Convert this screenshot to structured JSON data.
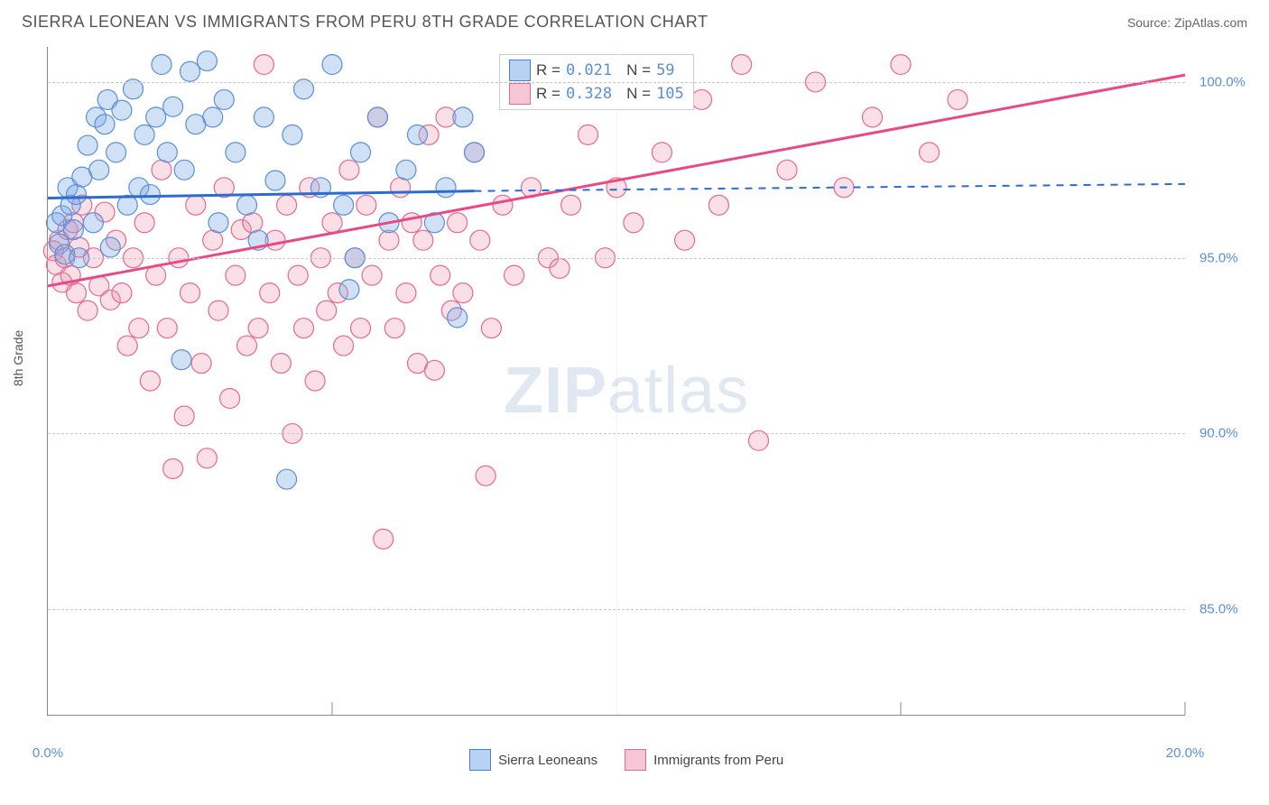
{
  "header": {
    "title": "SIERRA LEONEAN VS IMMIGRANTS FROM PERU 8TH GRADE CORRELATION CHART",
    "source": "Source: ZipAtlas.com"
  },
  "axes": {
    "ylabel": "8th Grade",
    "xlim": [
      0,
      20
    ],
    "ylim": [
      82,
      101
    ],
    "xticks": [
      0,
      10,
      20
    ],
    "xtick_labels": [
      "0.0%",
      "",
      "20.0%"
    ],
    "xtick_minor": [
      5,
      15
    ],
    "yticks": [
      85,
      90,
      95,
      100
    ],
    "ytick_labels": [
      "85.0%",
      "90.0%",
      "95.0%",
      "100.0%"
    ],
    "grid_color": "#c7c7c7"
  },
  "watermark": {
    "part1": "ZIP",
    "part2": "atlas"
  },
  "stats_legend": {
    "series": [
      {
        "swatch_fill": "#b7d2f2",
        "swatch_border": "#4b7fc4",
        "r_label": "R =",
        "r_value": "0.021",
        "n_label": "N =",
        "n_value": " 59"
      },
      {
        "swatch_fill": "#f7c7d3",
        "swatch_border": "#e36b8f",
        "r_label": "R =",
        "r_value": "0.328",
        "n_label": "N =",
        "n_value": "105"
      }
    ]
  },
  "bottom_legend": {
    "items": [
      {
        "swatch_fill": "#b7d2f2",
        "swatch_border": "#4b7fc4",
        "label": "Sierra Leoneans"
      },
      {
        "swatch_fill": "#f7c7d3",
        "swatch_border": "#e36b8f",
        "label": "Immigrants from Peru"
      }
    ]
  },
  "series": {
    "blue": {
      "fill": "rgba(120,170,230,0.35)",
      "stroke": "#5b8fd6",
      "marker_r": 11,
      "trend_color": "#2c6cd1",
      "trend_width": 3,
      "trend": {
        "x1": 0,
        "y1": 96.7,
        "x2": 7.5,
        "y2": 96.9,
        "x2_dash": 20,
        "y2_dash": 97.1
      },
      "points": [
        [
          0.15,
          96.0
        ],
        [
          0.2,
          95.4
        ],
        [
          0.25,
          96.2
        ],
        [
          0.3,
          95.1
        ],
        [
          0.35,
          97.0
        ],
        [
          0.4,
          96.5
        ],
        [
          0.45,
          95.8
        ],
        [
          0.5,
          96.8
        ],
        [
          0.55,
          95.0
        ],
        [
          0.6,
          97.3
        ],
        [
          0.7,
          98.2
        ],
        [
          0.8,
          96.0
        ],
        [
          0.85,
          99.0
        ],
        [
          0.9,
          97.5
        ],
        [
          1.0,
          98.8
        ],
        [
          1.05,
          99.5
        ],
        [
          1.1,
          95.3
        ],
        [
          1.2,
          98.0
        ],
        [
          1.3,
          99.2
        ],
        [
          1.4,
          96.5
        ],
        [
          1.5,
          99.8
        ],
        [
          1.6,
          97.0
        ],
        [
          1.7,
          98.5
        ],
        [
          1.8,
          96.8
        ],
        [
          1.9,
          99.0
        ],
        [
          2.0,
          100.5
        ],
        [
          2.1,
          98.0
        ],
        [
          2.2,
          99.3
        ],
        [
          2.35,
          92.1
        ],
        [
          2.4,
          97.5
        ],
        [
          2.5,
          100.3
        ],
        [
          2.6,
          98.8
        ],
        [
          2.8,
          100.6
        ],
        [
          2.9,
          99.0
        ],
        [
          3.0,
          96.0
        ],
        [
          3.1,
          99.5
        ],
        [
          3.3,
          98.0
        ],
        [
          3.5,
          96.5
        ],
        [
          3.7,
          95.5
        ],
        [
          3.8,
          99.0
        ],
        [
          4.0,
          97.2
        ],
        [
          4.2,
          88.7
        ],
        [
          4.3,
          98.5
        ],
        [
          4.5,
          99.8
        ],
        [
          4.8,
          97.0
        ],
        [
          5.0,
          100.5
        ],
        [
          5.2,
          96.5
        ],
        [
          5.3,
          94.1
        ],
        [
          5.4,
          95.0
        ],
        [
          5.5,
          98.0
        ],
        [
          5.8,
          99.0
        ],
        [
          6.0,
          96.0
        ],
        [
          6.3,
          97.5
        ],
        [
          6.5,
          98.5
        ],
        [
          6.8,
          96.0
        ],
        [
          7.0,
          97.0
        ],
        [
          7.3,
          99.0
        ],
        [
          7.2,
          93.3
        ],
        [
          7.5,
          98.0
        ]
      ]
    },
    "pink": {
      "fill": "rgba(240,150,175,0.3)",
      "stroke": "#e36b8f",
      "marker_r": 11,
      "trend_color": "#e64b86",
      "trend_width": 3,
      "trend": {
        "x1": 0,
        "y1": 94.2,
        "x2": 20,
        "y2": 100.2
      },
      "points": [
        [
          0.1,
          95.2
        ],
        [
          0.15,
          94.8
        ],
        [
          0.2,
          95.5
        ],
        [
          0.25,
          94.3
        ],
        [
          0.3,
          95.0
        ],
        [
          0.35,
          95.8
        ],
        [
          0.4,
          94.5
        ],
        [
          0.45,
          96.0
        ],
        [
          0.5,
          94.0
        ],
        [
          0.55,
          95.3
        ],
        [
          0.6,
          96.5
        ],
        [
          0.7,
          93.5
        ],
        [
          0.8,
          95.0
        ],
        [
          0.9,
          94.2
        ],
        [
          1.0,
          96.3
        ],
        [
          1.1,
          93.8
        ],
        [
          1.2,
          95.5
        ],
        [
          1.3,
          94.0
        ],
        [
          1.4,
          92.5
        ],
        [
          1.5,
          95.0
        ],
        [
          1.6,
          93.0
        ],
        [
          1.7,
          96.0
        ],
        [
          1.8,
          91.5
        ],
        [
          1.9,
          94.5
        ],
        [
          2.0,
          97.5
        ],
        [
          2.1,
          93.0
        ],
        [
          2.2,
          89.0
        ],
        [
          2.3,
          95.0
        ],
        [
          2.4,
          90.5
        ],
        [
          2.5,
          94.0
        ],
        [
          2.6,
          96.5
        ],
        [
          2.7,
          92.0
        ],
        [
          2.8,
          89.3
        ],
        [
          2.9,
          95.5
        ],
        [
          3.0,
          93.5
        ],
        [
          3.1,
          97.0
        ],
        [
          3.2,
          91.0
        ],
        [
          3.3,
          94.5
        ],
        [
          3.4,
          95.8
        ],
        [
          3.5,
          92.5
        ],
        [
          3.6,
          96.0
        ],
        [
          3.7,
          93.0
        ],
        [
          3.8,
          100.5
        ],
        [
          3.9,
          94.0
        ],
        [
          4.0,
          95.5
        ],
        [
          4.1,
          92.0
        ],
        [
          4.2,
          96.5
        ],
        [
          4.3,
          90.0
        ],
        [
          4.4,
          94.5
        ],
        [
          4.5,
          93.0
        ],
        [
          4.6,
          97.0
        ],
        [
          4.7,
          91.5
        ],
        [
          4.8,
          95.0
        ],
        [
          4.9,
          93.5
        ],
        [
          5.0,
          96.0
        ],
        [
          5.1,
          94.0
        ],
        [
          5.2,
          92.5
        ],
        [
          5.3,
          97.5
        ],
        [
          5.4,
          95.0
        ],
        [
          5.5,
          93.0
        ],
        [
          5.6,
          96.5
        ],
        [
          5.7,
          94.5
        ],
        [
          5.8,
          99.0
        ],
        [
          5.9,
          87.0
        ],
        [
          6.0,
          95.5
        ],
        [
          6.1,
          93.0
        ],
        [
          6.2,
          97.0
        ],
        [
          6.3,
          94.0
        ],
        [
          6.4,
          96.0
        ],
        [
          6.5,
          92.0
        ],
        [
          6.6,
          95.5
        ],
        [
          6.7,
          98.5
        ],
        [
          6.8,
          91.8
        ],
        [
          6.9,
          94.5
        ],
        [
          7.0,
          99.0
        ],
        [
          7.1,
          93.5
        ],
        [
          7.2,
          96.0
        ],
        [
          7.3,
          94.0
        ],
        [
          7.5,
          98.0
        ],
        [
          7.6,
          95.5
        ],
        [
          7.7,
          88.8
        ],
        [
          7.8,
          93.0
        ],
        [
          8.0,
          96.5
        ],
        [
          8.2,
          94.5
        ],
        [
          8.5,
          97.0
        ],
        [
          8.8,
          95.0
        ],
        [
          9.0,
          94.7
        ],
        [
          9.2,
          96.5
        ],
        [
          9.5,
          98.5
        ],
        [
          9.8,
          95.0
        ],
        [
          10.0,
          97.0
        ],
        [
          10.3,
          96.0
        ],
        [
          10.8,
          98.0
        ],
        [
          11.2,
          95.5
        ],
        [
          11.5,
          99.5
        ],
        [
          11.8,
          96.5
        ],
        [
          12.2,
          100.5
        ],
        [
          12.5,
          89.8
        ],
        [
          13.0,
          97.5
        ],
        [
          13.5,
          100.0
        ],
        [
          14.0,
          97.0
        ],
        [
          14.5,
          99.0
        ],
        [
          15.0,
          100.5
        ],
        [
          15.5,
          98.0
        ],
        [
          16.0,
          99.5
        ]
      ]
    }
  }
}
